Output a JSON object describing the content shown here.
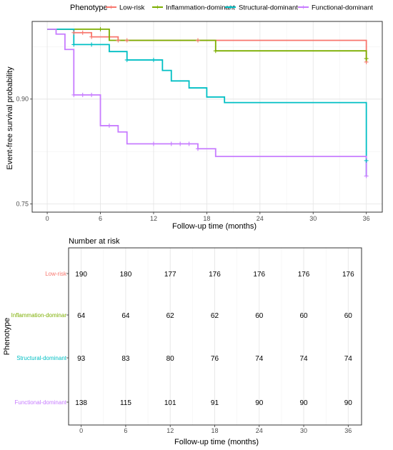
{
  "chart_data": [
    {
      "type": "line",
      "subtype": "step",
      "legend": {
        "title": "Phenotype",
        "position": "top",
        "entries": [
          "Low-risk",
          "Inflammation-dominant",
          "Structural-dominant",
          "Functional-dominant"
        ]
      },
      "xlabel": "Follow-up time (months)",
      "ylabel": "Event-free survival probability",
      "xlim": [
        0,
        36
      ],
      "ylim": [
        0.75,
        1.0
      ],
      "xticks": [
        0,
        6,
        12,
        18,
        24,
        30,
        36
      ],
      "yticks": [
        0.75,
        0.9
      ],
      "grid": true,
      "series": [
        {
          "name": "Low-risk",
          "color": "#F8766D",
          "steps": [
            [
              0,
              1.0
            ],
            [
              3,
              0.995
            ],
            [
              5,
              0.989
            ],
            [
              8,
              0.984
            ],
            [
              36,
              0.979
            ],
            [
              36,
              0.953
            ]
          ],
          "censors": [
            [
              3,
              0.995
            ],
            [
              4,
              0.995
            ],
            [
              5,
              0.989
            ],
            [
              8,
              0.984
            ],
            [
              9,
              0.984
            ],
            [
              17,
              0.984
            ],
            [
              36,
              0.953
            ]
          ]
        },
        {
          "name": "Inflammation-dominant",
          "color": "#7CAE00",
          "steps": [
            [
              0,
              1.0
            ],
            [
              7,
              0.984
            ],
            [
              19,
              0.969
            ],
            [
              36,
              0.953
            ]
          ],
          "censors": [
            [
              6,
              1.0
            ],
            [
              19,
              0.969
            ],
            [
              36,
              0.958
            ]
          ]
        },
        {
          "name": "Structural-dominant",
          "color": "#00BFC4",
          "steps": [
            [
              0,
              1.0
            ],
            [
              3,
              0.978
            ],
            [
              7,
              0.968
            ],
            [
              9,
              0.956
            ],
            [
              13,
              0.941
            ],
            [
              14,
              0.926
            ],
            [
              16,
              0.916
            ],
            [
              18,
              0.903
            ],
            [
              20,
              0.895
            ],
            [
              36,
              0.79
            ]
          ],
          "censors": [
            [
              3,
              0.978
            ],
            [
              5,
              0.978
            ],
            [
              9,
              0.956
            ],
            [
              12,
              0.956
            ],
            [
              36,
              0.812
            ]
          ]
        },
        {
          "name": "Functional-dominant",
          "color": "#C77CFF",
          "steps": [
            [
              0,
              1.0
            ],
            [
              1,
              0.993
            ],
            [
              2,
              0.971
            ],
            [
              3,
              0.906
            ],
            [
              6,
              0.862
            ],
            [
              8,
              0.853
            ],
            [
              9,
              0.836
            ],
            [
              17,
              0.829
            ],
            [
              19,
              0.818
            ],
            [
              36,
              0.79
            ]
          ],
          "censors": [
            [
              3,
              0.906
            ],
            [
              4,
              0.906
            ],
            [
              5,
              0.906
            ],
            [
              7,
              0.862
            ],
            [
              12,
              0.836
            ],
            [
              14,
              0.836
            ],
            [
              15,
              0.836
            ],
            [
              16,
              0.836
            ],
            [
              17,
              0.829
            ],
            [
              36,
              0.79
            ]
          ]
        }
      ]
    },
    {
      "type": "table",
      "title": "Number at risk",
      "xlabel": "Follow-up time (months)",
      "ylabel": "Phenotype",
      "xticks": [
        0,
        6,
        12,
        18,
        24,
        30,
        36
      ],
      "rows": [
        {
          "name": "Low-risk",
          "color": "#F8766D",
          "values": [
            190,
            180,
            177,
            176,
            176,
            176,
            176
          ]
        },
        {
          "name": "Inflammation-dominant",
          "display_name": "Inflammation-dominar",
          "color": "#7CAE00",
          "values": [
            64,
            64,
            62,
            62,
            60,
            60,
            60
          ]
        },
        {
          "name": "Structural-dominant",
          "color": "#00BFC4",
          "values": [
            93,
            83,
            80,
            76,
            74,
            74,
            74
          ]
        },
        {
          "name": "Functional-dominant",
          "color": "#C77CFF",
          "values": [
            138,
            115,
            101,
            91,
            90,
            90,
            90
          ]
        }
      ]
    }
  ]
}
